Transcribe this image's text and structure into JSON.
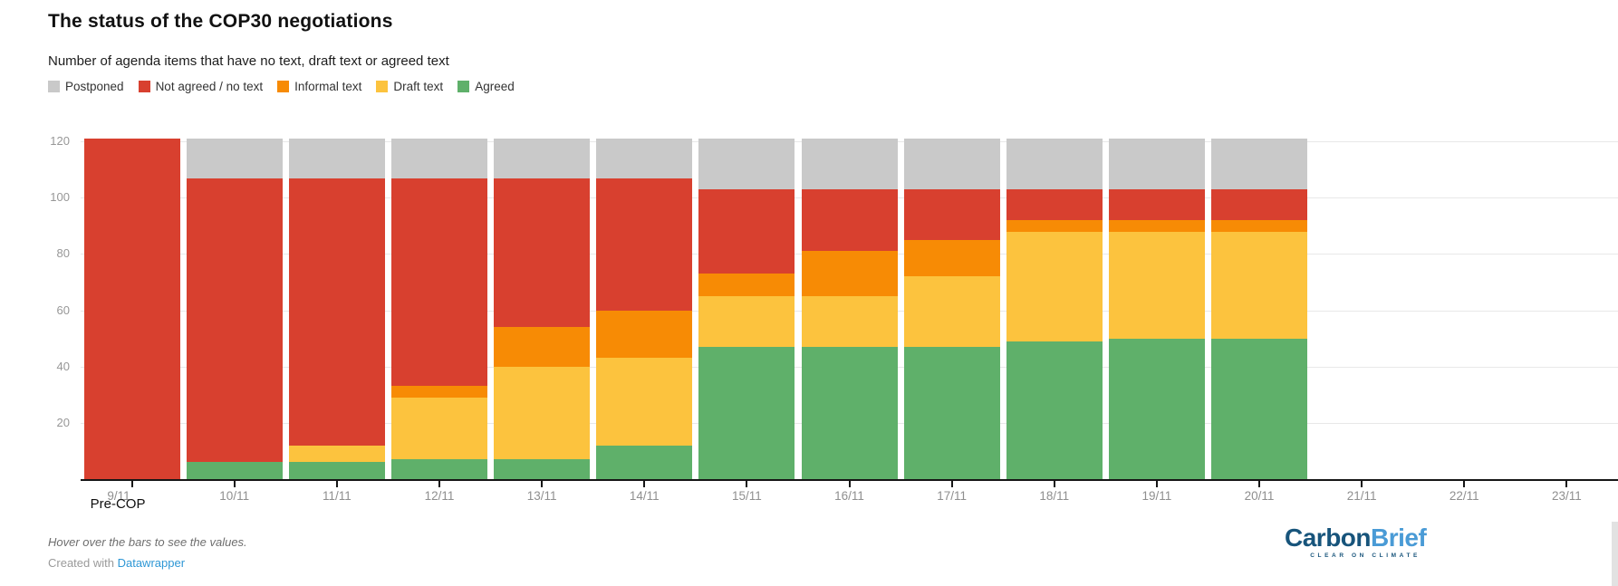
{
  "chart_data": {
    "type": "bar",
    "stacked": true,
    "title": "The status of the COP30 negotiations",
    "subtitle": "Number of agenda items that have no text, draft text or agreed text",
    "categories": [
      "9/11",
      "10/11",
      "11/11",
      "12/11",
      "13/11",
      "14/11",
      "15/11",
      "16/11",
      "17/11",
      "18/11",
      "19/11",
      "20/11",
      "21/11",
      "22/11",
      "23/11"
    ],
    "category_0_extra_label": "Pre-COP",
    "yticks": [
      20,
      40,
      60,
      80,
      100,
      120
    ],
    "ymax": 121,
    "grid": true,
    "legend_position": "top",
    "series": [
      {
        "name": "Agreed",
        "color": "#5fb06a",
        "values": [
          0,
          6,
          6,
          7,
          7,
          12,
          47,
          47,
          47,
          49,
          50,
          50,
          0,
          0,
          0
        ]
      },
      {
        "name": "Draft text",
        "color": "#fcc33e",
        "values": [
          0,
          0,
          6,
          22,
          33,
          31,
          18,
          18,
          25,
          39,
          38,
          38,
          0,
          0,
          0
        ]
      },
      {
        "name": "Informal text",
        "color": "#f78b05",
        "values": [
          0,
          0,
          0,
          4,
          14,
          17,
          8,
          16,
          13,
          4,
          4,
          4,
          0,
          0,
          0
        ]
      },
      {
        "name": "Not agreed / no text",
        "color": "#d8402f",
        "values": [
          121,
          101,
          95,
          74,
          53,
          47,
          30,
          22,
          18,
          11,
          11,
          11,
          0,
          0,
          0
        ]
      },
      {
        "name": "Postponed",
        "color": "#c9c9c9",
        "values": [
          0,
          14,
          14,
          14,
          14,
          14,
          18,
          18,
          18,
          18,
          18,
          18,
          0,
          0,
          0
        ]
      }
    ]
  },
  "legend": {
    "items": [
      {
        "label": "Postponed",
        "color": "#c9c9c9"
      },
      {
        "label": "Not agreed / no text",
        "color": "#d8402f"
      },
      {
        "label": "Informal text",
        "color": "#f78b05"
      },
      {
        "label": "Draft text",
        "color": "#fcc33e"
      },
      {
        "label": "Agreed",
        "color": "#5fb06a"
      }
    ]
  },
  "footer": {
    "hover_note": "Hover over the bars to see the values.",
    "credit_prefix": "Created with ",
    "credit_link": "Datawrapper"
  },
  "logo": {
    "part1": "Carbon",
    "part2": "Brief",
    "tagline": "CLEAR ON CLIMATE",
    "color_dark": "#17547b",
    "color_light": "#4a9bd6"
  }
}
